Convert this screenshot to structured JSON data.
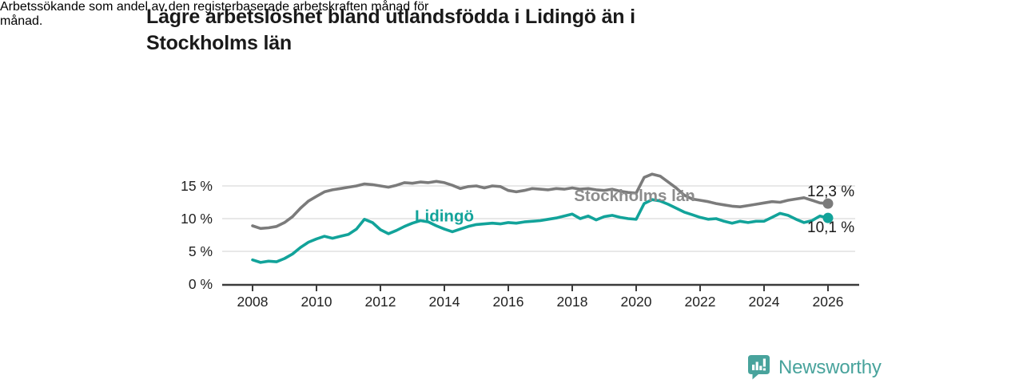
{
  "header": {
    "title": "Lägre arbetslöshet bland utlandsfödda i Lidingö än i Stockholms län",
    "title_lines": [
      "Lägre arbetslöshet bland utlandsfödda i Lidingö än i",
      "Stockholms län"
    ],
    "subtitle": "Arbetssökande som andel av den registerbaserade arbetskraften månad för månad.",
    "subtitle_lines": [
      "Arbetssökande som andel av den registerbaserade arbetskraften månad för",
      "månad."
    ]
  },
  "chart_data": {
    "type": "line",
    "title": "Lägre arbetslöshet bland utlandsfödda i Lidingö än i Stockholms län",
    "subtitle": "Arbetssökande som andel av den registerbaserade arbetskraften månad för månad.",
    "xlabel": "",
    "ylabel": "",
    "xlim": [
      2008,
      2026
    ],
    "ylim": [
      0,
      18
    ],
    "grid": "horizontal",
    "legend_position": "inline-labels",
    "x": [
      2008,
      2008.25,
      2008.5,
      2008.75,
      2009,
      2009.25,
      2009.5,
      2009.75,
      2010,
      2010.25,
      2010.5,
      2010.75,
      2011,
      2011.25,
      2011.5,
      2011.75,
      2012,
      2012.25,
      2012.5,
      2012.75,
      2013,
      2013.25,
      2013.5,
      2013.75,
      2014,
      2014.25,
      2014.5,
      2014.75,
      2015,
      2015.25,
      2015.5,
      2015.75,
      2016,
      2016.25,
      2016.5,
      2016.75,
      2017,
      2017.25,
      2017.5,
      2017.75,
      2018,
      2018.25,
      2018.5,
      2018.75,
      2019,
      2019.25,
      2019.5,
      2019.75,
      2020,
      2020.25,
      2020.5,
      2020.75,
      2021,
      2021.25,
      2021.5,
      2021.75,
      2022,
      2022.25,
      2022.5,
      2022.75,
      2023,
      2023.25,
      2023.5,
      2023.75,
      2024,
      2024.25,
      2024.5,
      2024.75,
      2025,
      2025.25,
      2025.5,
      2025.75,
      2026
    ],
    "series": [
      {
        "name": "Stockholms län",
        "color": "#7b7b7b",
        "end_label": "12,3 %",
        "end_value": 12.3,
        "values": [
          8.9,
          8.5,
          8.6,
          8.8,
          9.4,
          10.3,
          11.6,
          12.7,
          13.4,
          14.1,
          14.4,
          14.6,
          14.8,
          15.0,
          15.3,
          15.2,
          15.0,
          14.8,
          15.1,
          15.5,
          15.4,
          15.6,
          15.5,
          15.7,
          15.5,
          15.1,
          14.6,
          14.9,
          15.0,
          14.7,
          15.0,
          14.9,
          14.3,
          14.1,
          14.3,
          14.6,
          14.5,
          14.4,
          14.6,
          14.5,
          14.7,
          14.5,
          14.6,
          14.4,
          14.3,
          14.5,
          14.2,
          14.0,
          13.9,
          16.3,
          16.8,
          16.5,
          15.6,
          14.7,
          13.6,
          13.0,
          12.8,
          12.6,
          12.3,
          12.1,
          11.9,
          11.8,
          12.0,
          12.2,
          12.4,
          12.6,
          12.5,
          12.8,
          13.0,
          13.2,
          12.8,
          12.4,
          12.3
        ]
      },
      {
        "name": "Lidingö",
        "color": "#12a39a",
        "end_label": "10,1 %",
        "end_value": 10.1,
        "values": [
          3.7,
          3.3,
          3.5,
          3.4,
          3.9,
          4.6,
          5.6,
          6.4,
          6.9,
          7.3,
          7.0,
          7.3,
          7.6,
          8.4,
          9.9,
          9.4,
          8.3,
          7.7,
          8.2,
          8.8,
          9.3,
          9.7,
          9.5,
          8.9,
          8.4,
          8.0,
          8.4,
          8.8,
          9.1,
          9.2,
          9.3,
          9.2,
          9.4,
          9.3,
          9.5,
          9.6,
          9.7,
          9.9,
          10.1,
          10.4,
          10.7,
          10.0,
          10.4,
          9.8,
          10.3,
          10.5,
          10.2,
          10.0,
          9.9,
          12.3,
          12.9,
          12.7,
          12.2,
          11.6,
          11.0,
          10.6,
          10.2,
          9.9,
          10.0,
          9.6,
          9.3,
          9.6,
          9.4,
          9.6,
          9.6,
          10.2,
          10.8,
          10.5,
          9.9,
          9.4,
          9.7,
          10.4,
          10.1
        ]
      }
    ],
    "y_ticks": [
      {
        "value": 0,
        "label": "0 %"
      },
      {
        "value": 5,
        "label": "5 %"
      },
      {
        "value": 10,
        "label": "10 %"
      },
      {
        "value": 15,
        "label": "15 %"
      }
    ],
    "x_ticks": [
      {
        "value": 2008,
        "label": "2008"
      },
      {
        "value": 2010,
        "label": "2010"
      },
      {
        "value": 2012,
        "label": "2012"
      },
      {
        "value": 2014,
        "label": "2014"
      },
      {
        "value": 2016,
        "label": "2016"
      },
      {
        "value": 2018,
        "label": "2018"
      },
      {
        "value": 2020,
        "label": "2020"
      },
      {
        "value": 2022,
        "label": "2022"
      },
      {
        "value": 2024,
        "label": "2024"
      },
      {
        "value": 2026,
        "label": "2026"
      }
    ],
    "series_labels": [
      {
        "text": "Stockholms län",
        "x": 2019.95,
        "y": 13.55,
        "color": "#8c8c8c"
      },
      {
        "text": "Lidingö",
        "x": 2014.0,
        "y": 10.45,
        "color": "#12a39a"
      }
    ],
    "end_annotations": [
      {
        "text": "12,3 %",
        "x": 2025.35,
        "y": 14.15,
        "color": "#1a1a1a"
      },
      {
        "text": "10,1 %",
        "x": 2025.35,
        "y": 8.65,
        "color": "#1a1a1a"
      }
    ],
    "colors": {
      "grid": "#d9d9d9",
      "axis": "#3b3b3b",
      "tick_text": "#222222"
    }
  },
  "footer": {
    "brand": "Newsworthy",
    "brand_color": "#48a39c",
    "logo_icon": "bar-chart-speech-bubble"
  }
}
